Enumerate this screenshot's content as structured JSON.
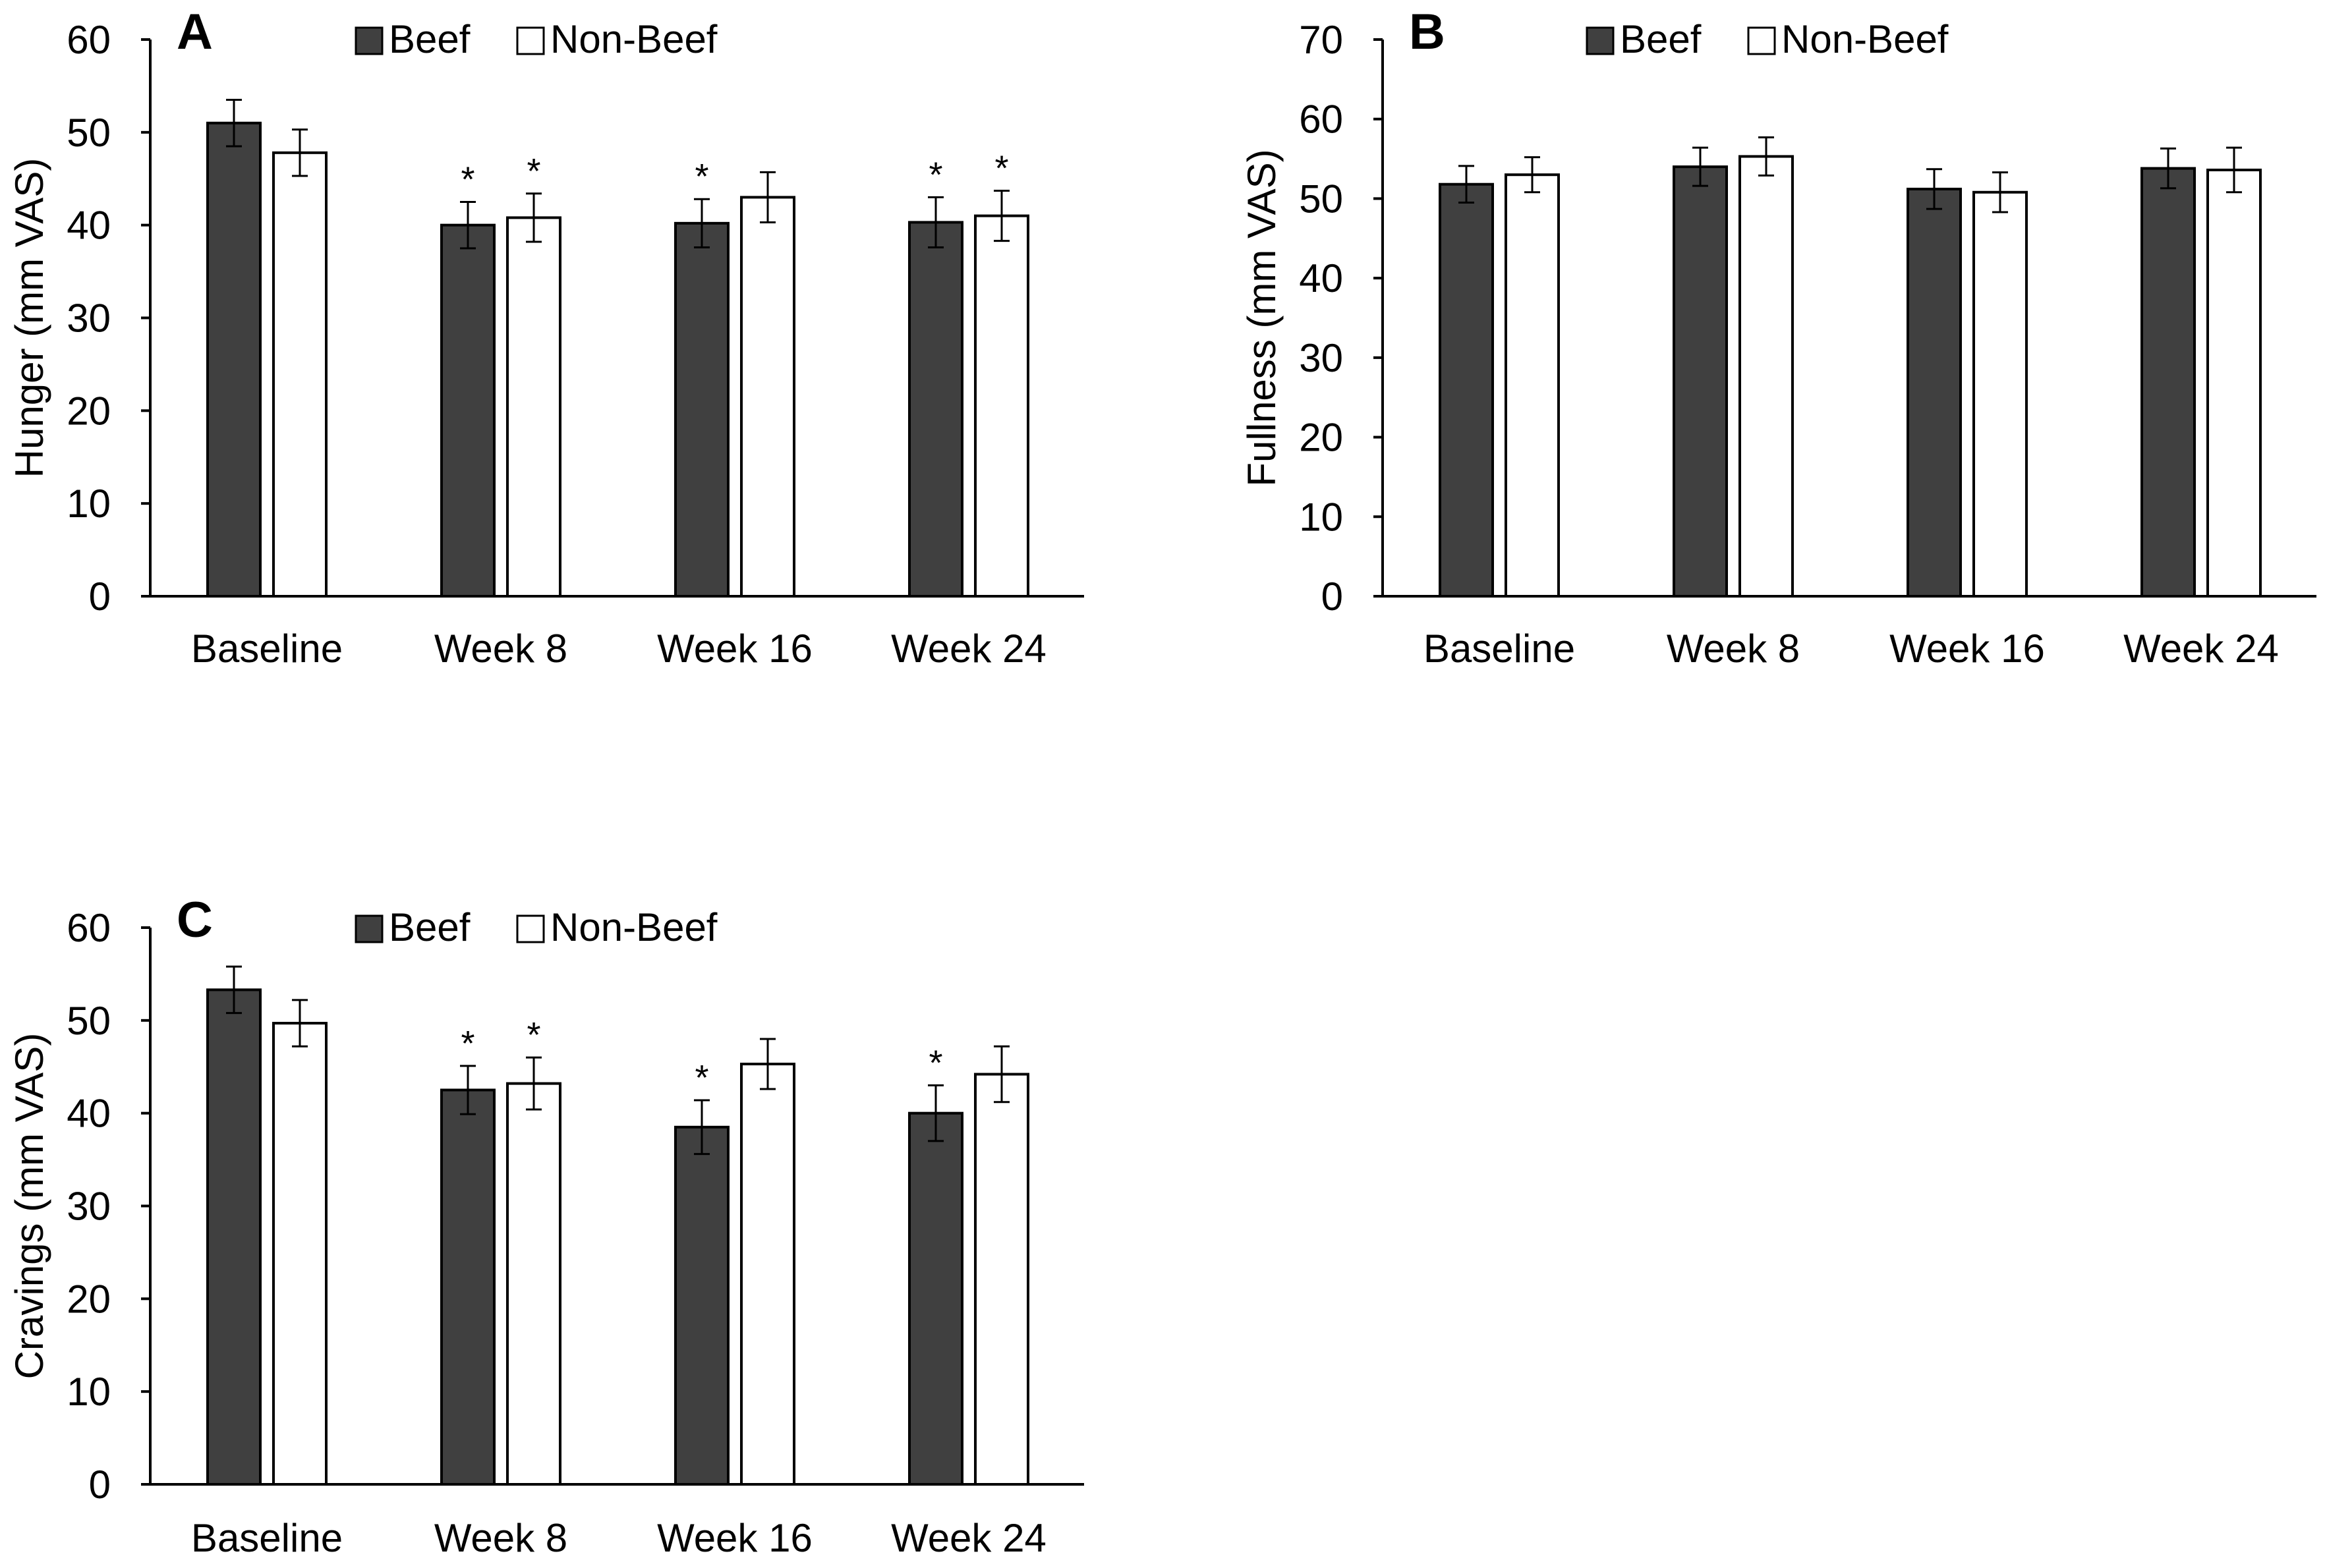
{
  "colors": {
    "beef": "#404040",
    "non_beef": "#ffffff",
    "outline": "#000000"
  },
  "legend": {
    "series": [
      "Beef",
      "Non-Beef"
    ]
  },
  "chart_data": [
    {
      "panel": "A",
      "type": "bar",
      "title": "",
      "xlabel": "",
      "ylabel": "Hunger (mm VAS)",
      "ylim": [
        0,
        60
      ],
      "yticks": [
        0,
        10,
        20,
        30,
        40,
        50,
        60
      ],
      "grid": false,
      "legend_position": "top-center",
      "categories": [
        "Baseline",
        "Week 8",
        "Week 16",
        "Week 24"
      ],
      "series": [
        {
          "name": "Beef",
          "values": [
            51.0,
            40.0,
            40.2,
            40.3
          ],
          "errors": [
            2.5,
            2.5,
            2.6,
            2.7
          ],
          "significant": [
            false,
            true,
            true,
            true
          ]
        },
        {
          "name": "Non-Beef",
          "values": [
            47.8,
            40.8,
            43.0,
            41.0
          ],
          "errors": [
            2.5,
            2.6,
            2.7,
            2.7
          ],
          "significant": [
            false,
            true,
            false,
            true
          ]
        }
      ],
      "annotation_symbol": "*"
    },
    {
      "panel": "B",
      "type": "bar",
      "title": "",
      "xlabel": "",
      "ylabel": "Fullness (mm VAS)",
      "ylim": [
        0,
        70
      ],
      "yticks": [
        0,
        10,
        20,
        30,
        40,
        50,
        60,
        70
      ],
      "grid": false,
      "legend_position": "top-center",
      "categories": [
        "Baseline",
        "Week 8",
        "Week 16",
        "Week 24"
      ],
      "series": [
        {
          "name": "Beef",
          "values": [
            51.8,
            54.0,
            51.2,
            53.8
          ],
          "errors": [
            2.3,
            2.4,
            2.5,
            2.5
          ],
          "significant": [
            false,
            false,
            false,
            false
          ]
        },
        {
          "name": "Non-Beef",
          "values": [
            53.0,
            55.3,
            50.8,
            53.6
          ],
          "errors": [
            2.2,
            2.4,
            2.5,
            2.8
          ],
          "significant": [
            false,
            false,
            false,
            false
          ]
        }
      ],
      "annotation_symbol": "*"
    },
    {
      "panel": "C",
      "type": "bar",
      "title": "",
      "xlabel": "",
      "ylabel": "Cravings (mm VAS)",
      "ylim": [
        0,
        60
      ],
      "yticks": [
        0,
        10,
        20,
        30,
        40,
        50,
        60
      ],
      "grid": false,
      "legend_position": "top-center",
      "categories": [
        "Baseline",
        "Week 8",
        "Week 16",
        "Week 24"
      ],
      "series": [
        {
          "name": "Beef",
          "values": [
            53.3,
            42.5,
            38.5,
            40.0
          ],
          "errors": [
            2.5,
            2.6,
            2.9,
            3.0
          ],
          "significant": [
            false,
            true,
            true,
            true
          ]
        },
        {
          "name": "Non-Beef",
          "values": [
            49.7,
            43.2,
            45.3,
            44.2
          ],
          "errors": [
            2.5,
            2.8,
            2.7,
            3.0
          ],
          "significant": [
            false,
            true,
            false,
            false
          ]
        }
      ],
      "annotation_symbol": "*"
    }
  ]
}
